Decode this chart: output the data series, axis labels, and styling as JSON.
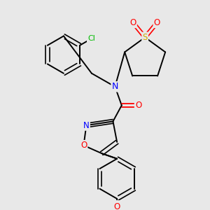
{
  "bg_color": "#e8e8e8",
  "atom_colors": {
    "C": "#000000",
    "N": "#0000ff",
    "O": "#ff0000",
    "S": "#ccaa00",
    "Cl": "#00bb00"
  },
  "bond_color": "#000000"
}
